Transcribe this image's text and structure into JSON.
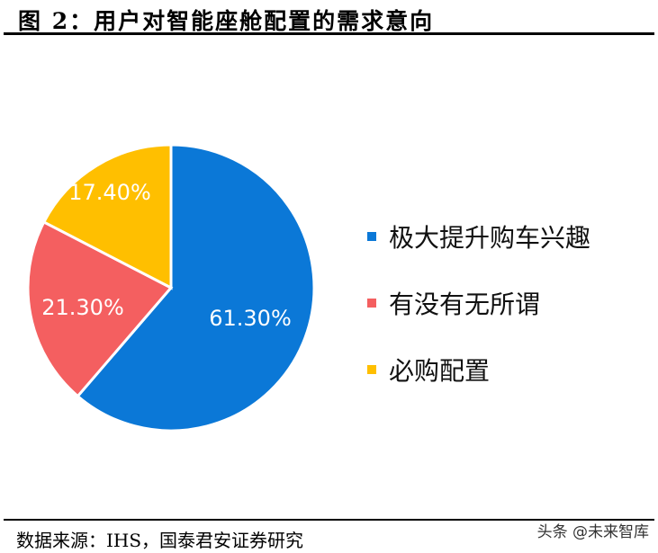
{
  "header": {
    "title": "图 2：用户对智能座舱配置的需求意向"
  },
  "footer": {
    "source": "数据来源：IHS，国泰君安证券研究",
    "watermark": "头条 @未来智库"
  },
  "colors": {
    "blue": "#0B78D7",
    "red": "#F45F60",
    "yellow": "#FFBF00"
  },
  "legend": [
    {
      "label": "极大提升购车兴趣",
      "color": "#0B78D7"
    },
    {
      "label": "有没有无所谓",
      "color": "#F45F60"
    },
    {
      "label": "必购配置",
      "color": "#FFBF00"
    }
  ],
  "slice_labels": [
    "61.30%",
    "21.30%",
    "17.40%"
  ],
  "chart_data": {
    "type": "pie",
    "title": "用户对智能座舱配置的需求意向",
    "categories": [
      "极大提升购车兴趣",
      "有没有无所谓",
      "必购配置"
    ],
    "values": [
      61.3,
      21.3,
      17.4
    ],
    "unit": "%",
    "labels": [
      "61.30%",
      "21.30%",
      "17.40%"
    ],
    "colors": [
      "#0B78D7",
      "#F45F60",
      "#FFBF00"
    ],
    "start_angle": "12 o'clock, clockwise",
    "legend_position": "right",
    "source": "数据来源：IHS，国泰君安证券研究"
  }
}
